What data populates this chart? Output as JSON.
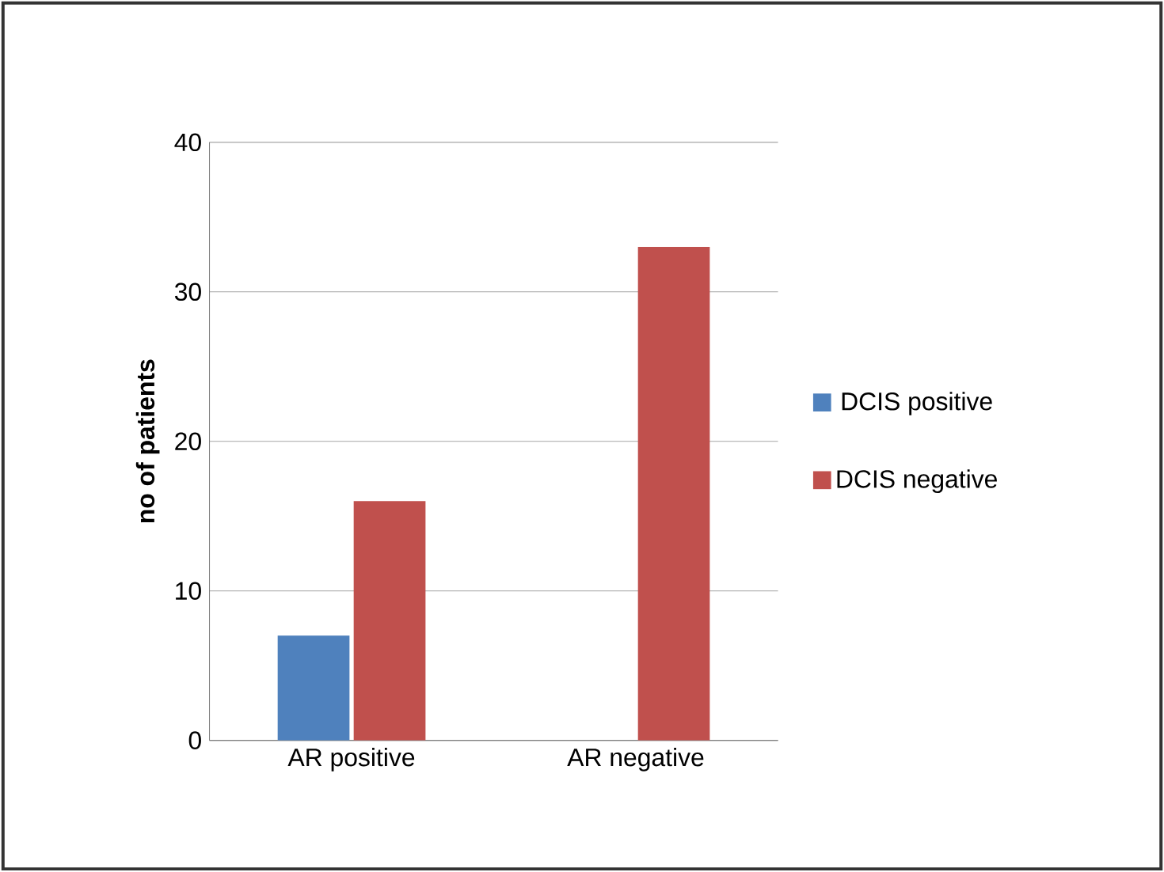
{
  "chart_data": {
    "type": "bar",
    "ylabel": "no of patients",
    "categories": [
      "AR positive",
      "AR negative"
    ],
    "series": [
      {
        "name": "DCIS positive",
        "color": "#4f81bd",
        "values": [
          7,
          0
        ]
      },
      {
        "name": "DCIS negative",
        "color": "#c0504d",
        "values": [
          16,
          33
        ]
      }
    ],
    "ylim": [
      0,
      40
    ],
    "yticks": [
      0,
      10,
      20,
      30,
      40
    ],
    "grid": "y",
    "legend": "right"
  }
}
